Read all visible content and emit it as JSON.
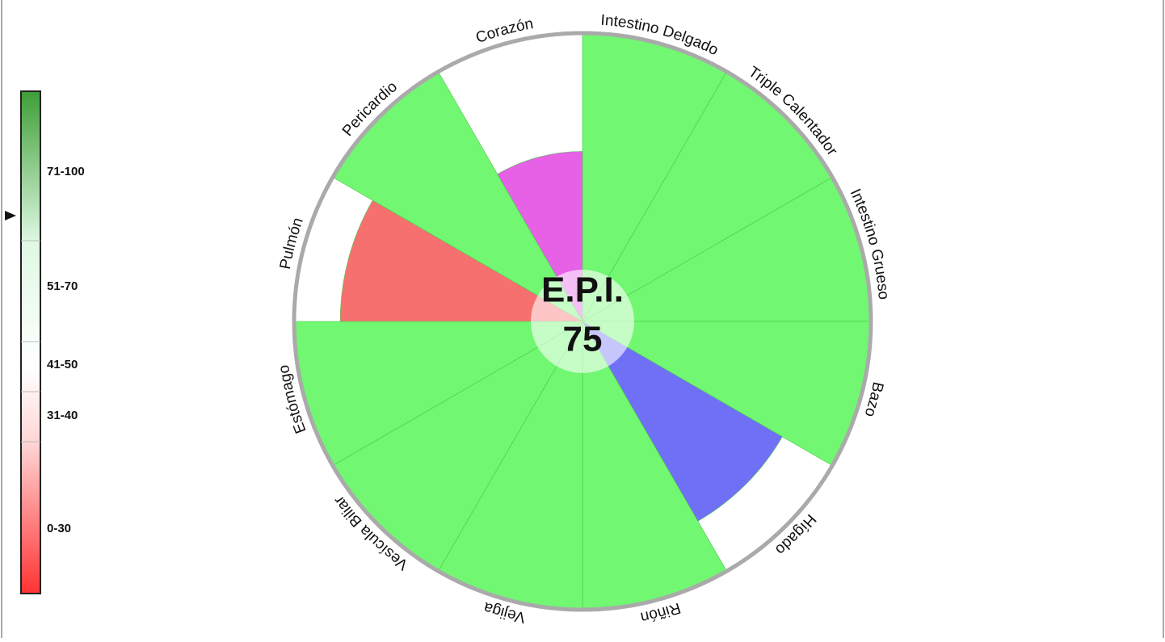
{
  "chart_data": {
    "type": "polar-area",
    "categories": [
      "Intestino Delgado",
      "Triple Calentador",
      "Intestino Grueso",
      "Bazo",
      "Hígado",
      "Riñón",
      "Vejiga",
      "Vesícula Biliar",
      "Estómago",
      "Pulmón",
      "Pericardio",
      "Corazón"
    ],
    "values": [
      100,
      100,
      100,
      100,
      80,
      100,
      100,
      100,
      100,
      84,
      100,
      59
    ],
    "colors": [
      "#6cf76c",
      "#6cf76c",
      "#6cf76c",
      "#6cf76c",
      "#6b6bf7",
      "#6cf76c",
      "#6cf76c",
      "#6cf76c",
      "#6cf76c",
      "#f76b6b",
      "#6cf76c",
      "#e65ce6"
    ],
    "rlim": [
      0,
      100
    ],
    "center_title": "E.P.I.",
    "center_value": 75,
    "legend": [
      "71-100",
      "51-70",
      "41-50",
      "31-40",
      "0-30"
    ]
  }
}
